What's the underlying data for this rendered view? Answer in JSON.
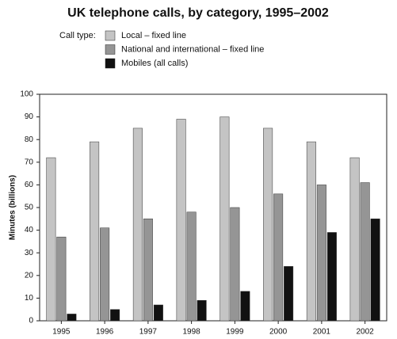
{
  "chart_data": {
    "type": "bar",
    "title": "UK telephone calls, by category, 1995–2002",
    "legend_title": "Call type:",
    "y_label": "Minutes (billions)",
    "categories": [
      "1995",
      "1996",
      "1997",
      "1998",
      "1999",
      "2000",
      "2001",
      "2002"
    ],
    "series": [
      {
        "name": "Local – fixed line",
        "color": "#c4c4c4",
        "values": [
          72,
          79,
          85,
          89,
          90,
          85,
          79,
          72
        ]
      },
      {
        "name": "National and international – fixed line",
        "color": "#959595",
        "values": [
          37,
          41,
          45,
          48,
          50,
          56,
          60,
          61
        ]
      },
      {
        "name": "Mobiles (all calls)",
        "color": "#111111",
        "values": [
          3,
          5,
          7,
          9,
          13,
          24,
          39,
          45
        ]
      }
    ],
    "ylim": [
      0,
      100
    ],
    "yticks": [
      0,
      10,
      20,
      30,
      40,
      50,
      60,
      70,
      80,
      90,
      100
    ],
    "grid": false
  }
}
